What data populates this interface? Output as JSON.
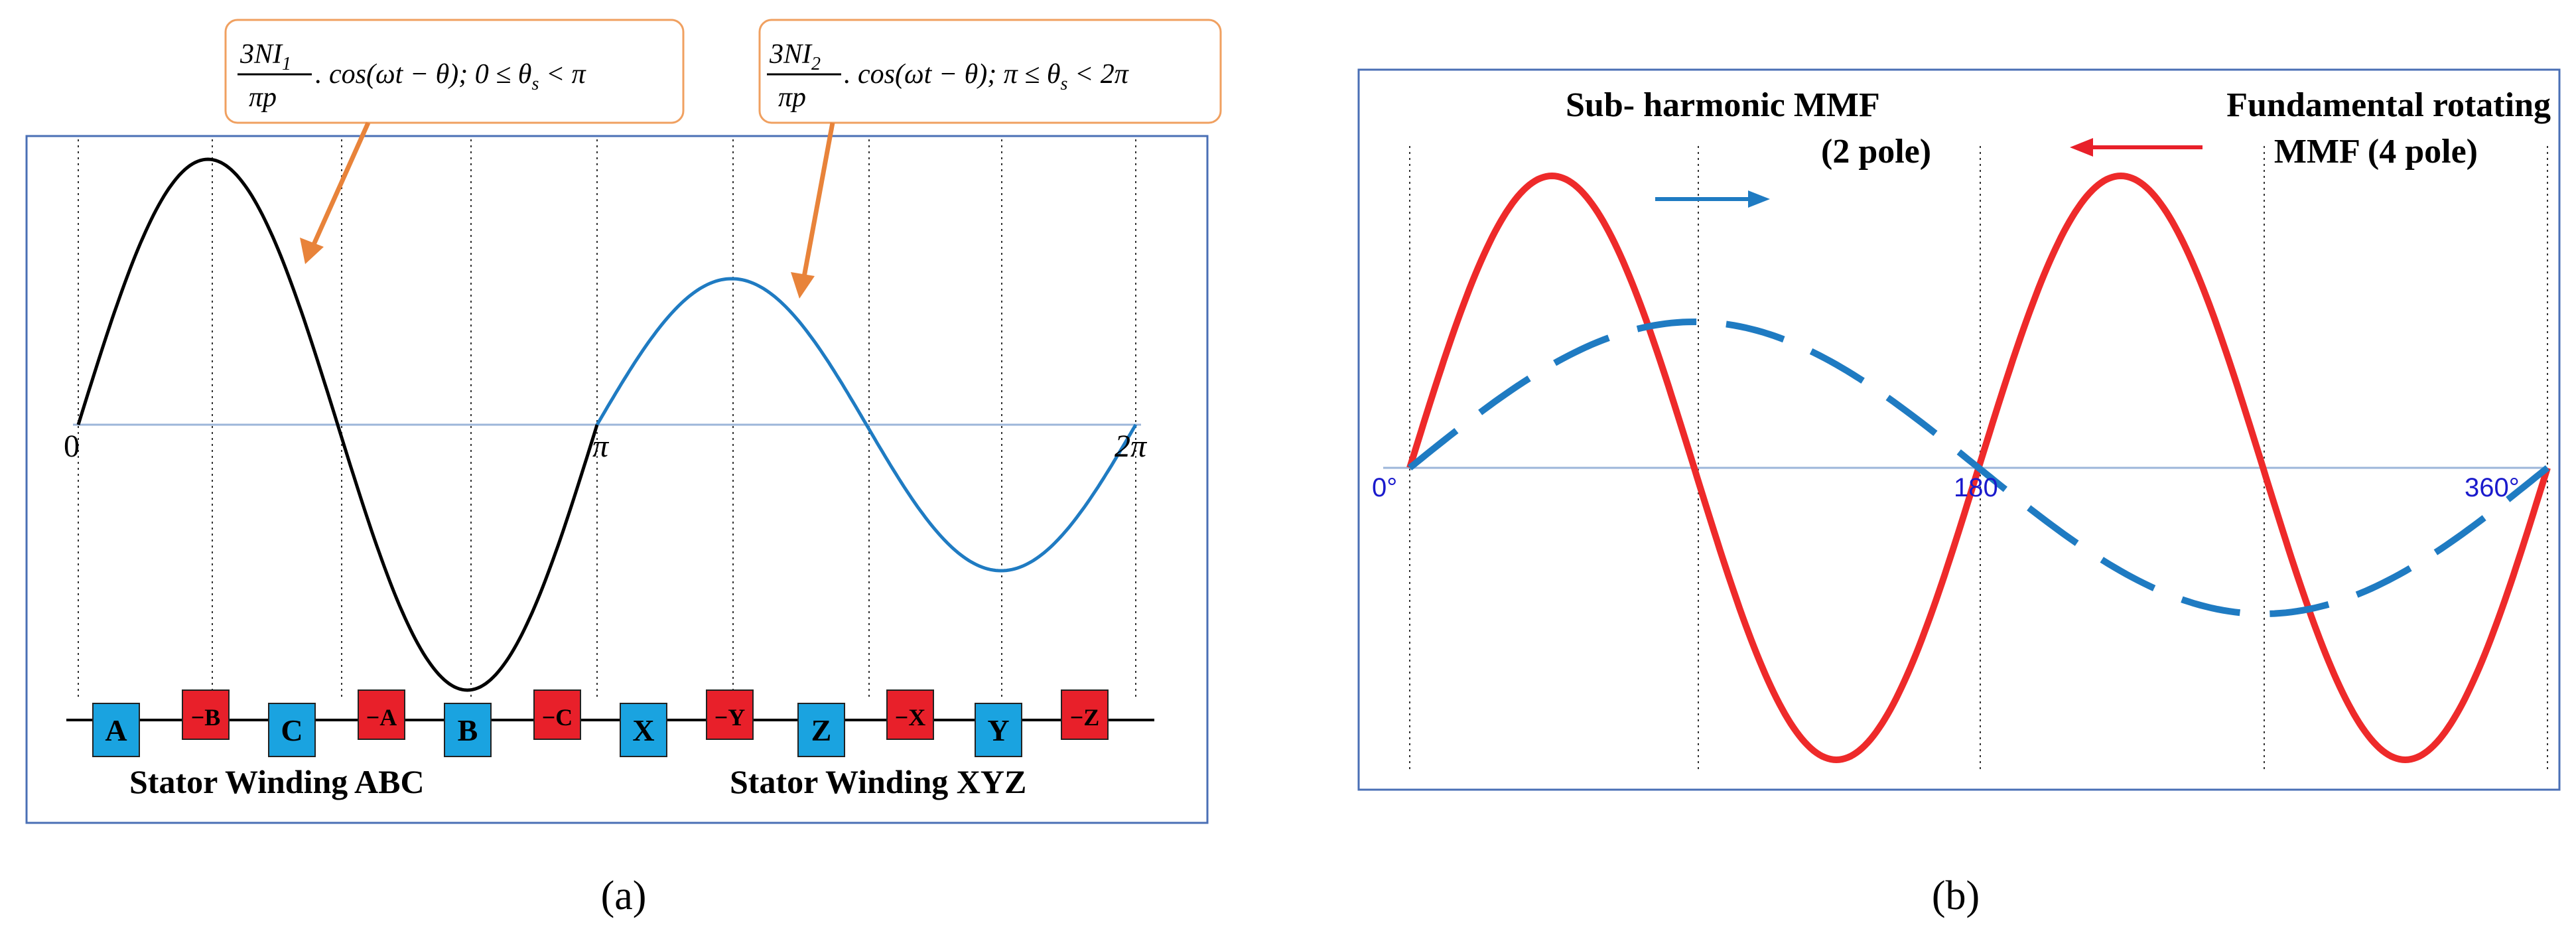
{
  "colors": {
    "panel_border": "#4a6fb5",
    "black_wave": "#000000",
    "blue_wave": "#1f7bc2",
    "red_wave": "#e8202a",
    "callout_border": "#f0a060",
    "callout_arrow": "#e8833a",
    "winding_blue": "#1aa3e0",
    "winding_red": "#e8202a",
    "axis_label_blue": "#1a1acc",
    "arrow_blue": "#1f7bc2",
    "arrow_red": "#e8202a"
  },
  "panel_a": {
    "caption": "(a)",
    "callout_1": {
      "num": "3NI",
      "sub": "1",
      "den": "πp",
      "tail": ". cos(ωt − θ); 0 ≤ θ",
      "tail_sub": "s",
      "tail_end": " < π"
    },
    "callout_2": {
      "num": "3NI",
      "sub": "2",
      "den": "πp",
      "tail": ". cos(ωt − θ); π ≤ θ",
      "tail_sub": "s",
      "tail_end": " < 2π"
    },
    "axis_labels": [
      "0",
      "π",
      "2π"
    ],
    "windings": [
      {
        "label": "A",
        "color": "blue"
      },
      {
        "label": "−B",
        "color": "red"
      },
      {
        "label": "C",
        "color": "blue"
      },
      {
        "label": "−A",
        "color": "red"
      },
      {
        "label": "B",
        "color": "blue"
      },
      {
        "label": "−C",
        "color": "red"
      },
      {
        "label": "X",
        "color": "blue"
      },
      {
        "label": "−Y",
        "color": "red"
      },
      {
        "label": "Z",
        "color": "blue"
      },
      {
        "label": "−X",
        "color": "red"
      },
      {
        "label": "Y",
        "color": "blue"
      },
      {
        "label": "−Z",
        "color": "red"
      }
    ],
    "winding_abc_label": "Stator Winding ABC",
    "winding_xyz_label": "Stator Winding XYZ"
  },
  "panel_b": {
    "caption": "(b)",
    "subharmonic_label_1": "Sub- harmonic MMF",
    "subharmonic_label_2": "(2 pole)",
    "fundamental_label_1": "Fundamental rotating",
    "fundamental_label_2": "MMF (4 pole)",
    "axis_labels": [
      "0°",
      "180",
      "360°"
    ]
  }
}
